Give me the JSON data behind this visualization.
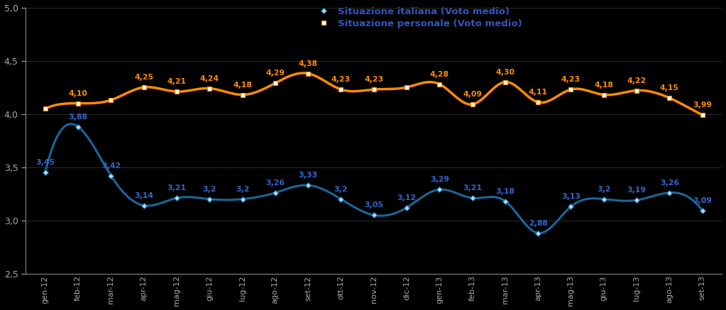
{
  "labels": [
    "gen-12",
    "feb-12",
    "mar-12",
    "apr-12",
    "mag-12",
    "giu-12",
    "lug-12",
    "ago-12",
    "set-12",
    "ott-12",
    "nov-12",
    "dic-12",
    "gen-13",
    "feb-13",
    "mar-13",
    "apr-13",
    "mag-13",
    "giu-13",
    "lug-13",
    "ago-13",
    "set-13"
  ],
  "italiana": [
    3.45,
    3.88,
    3.42,
    3.14,
    3.21,
    3.2,
    3.2,
    3.26,
    3.33,
    3.2,
    3.05,
    3.12,
    3.29,
    3.21,
    3.18,
    2.88,
    3.13,
    3.2,
    3.19,
    3.26,
    3.09
  ],
  "personale": [
    4.05,
    4.1,
    4.13,
    4.25,
    4.21,
    4.24,
    4.18,
    4.29,
    4.38,
    4.23,
    4.23,
    4.25,
    4.28,
    4.09,
    4.3,
    4.11,
    4.23,
    4.18,
    4.22,
    4.15,
    3.99
  ],
  "italiana_labels": [
    "3,45",
    "3,88",
    "3,42",
    "3,14",
    "3,21",
    "3,2",
    "3,2",
    "3,26",
    "3,33",
    "3,2",
    "3,05",
    "3,12",
    "3,29",
    "3,21",
    "3,18",
    "2,88",
    "3,13",
    "3,2",
    "3,19",
    "3,26",
    "3,09"
  ],
  "personale_labels": [
    null,
    "4,10",
    null,
    "4,25",
    "4,21",
    "4,24",
    "4,18",
    "4,29",
    "4,38",
    "4,23",
    "4,23",
    null,
    "4,28",
    "4,09",
    "4,30",
    "4,11",
    "4,23",
    "4,18",
    "4,22",
    "4,15",
    "3,99"
  ],
  "color_italiana": "#1a6699",
  "color_personale": "#FF8C00",
  "color_italiana_label": "#3366CC",
  "color_personale_label": "#FF8C00",
  "legend_italiana": "Situazione italiana (Voto medio)",
  "legend_personale": "Situazione personale (Voto medio)",
  "legend_text_color": "#3355BB",
  "ylim": [
    2.5,
    5.0
  ],
  "yticks": [
    2.5,
    3.0,
    3.5,
    4.0,
    4.5,
    5.0
  ],
  "bg_color": "#000000",
  "axis_color": "#888888",
  "grid_color": "#333333",
  "tick_color": "#aaaaaa"
}
